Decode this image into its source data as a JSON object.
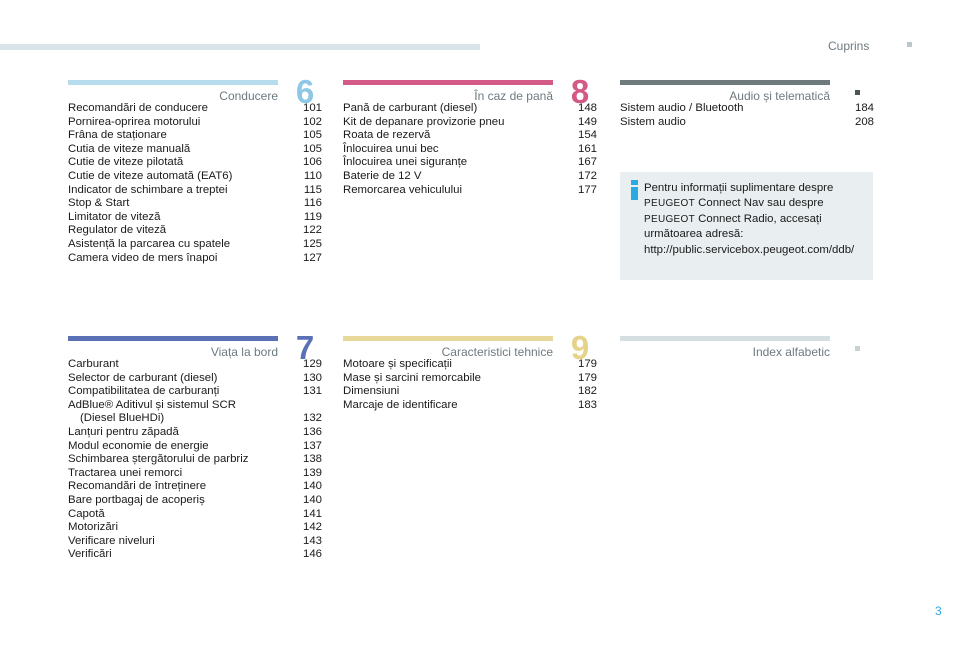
{
  "header": {
    "title": "Cuprins"
  },
  "page_number": "3",
  "sections": {
    "s6": {
      "number": "6",
      "title": "Conducere",
      "color": "#b7dcee",
      "entries": [
        {
          "label": "Recomandări de conducere",
          "page": "101"
        },
        {
          "label": "Pornirea-oprirea motorului",
          "page": "102"
        },
        {
          "label": "Frâna de staționare",
          "page": "105"
        },
        {
          "label": "Cutia de viteze manuală",
          "page": "105"
        },
        {
          "label": "Cutie de viteze pilotată",
          "page": "106"
        },
        {
          "label": "Cutie de viteze automată (EAT6)",
          "page": "110"
        },
        {
          "label": "Indicator de schimbare a treptei",
          "page": "115"
        },
        {
          "label": "Stop & Start",
          "page": "116"
        },
        {
          "label": "Limitator de viteză",
          "page": "119"
        },
        {
          "label": "Regulator de viteză",
          "page": "122"
        },
        {
          "label": "Asistență la parcarea cu spatele",
          "page": "125"
        },
        {
          "label": "Camera video de mers înapoi",
          "page": "127"
        }
      ]
    },
    "s8": {
      "number": "8",
      "title": "În caz de pană",
      "color": "#d35a86",
      "entries": [
        {
          "label": "Pană de carburant (diesel)",
          "page": "148"
        },
        {
          "label": "Kit de depanare provizorie pneu",
          "page": "149"
        },
        {
          "label": "Roata de rezervă",
          "page": "154"
        },
        {
          "label": "Înlocuirea unui bec",
          "page": "161"
        },
        {
          "label": "Înlocuirea unei siguranțe",
          "page": "167"
        },
        {
          "label": "Baterie de 12 V",
          "page": "172"
        },
        {
          "label": "Remorcarea vehiculului",
          "page": "177"
        }
      ]
    },
    "saudio": {
      "title": "Audio și telematică",
      "color": "#6e7a7c",
      "entries": [
        {
          "label": "Sistem audio / Bluetooth",
          "page": "184"
        },
        {
          "label": "Sistem audio",
          "page": "208"
        }
      ]
    },
    "s7": {
      "number": "7",
      "title": "Viața la bord",
      "color": "#5a72b5",
      "entries": [
        {
          "label": "Carburant",
          "page": "129"
        },
        {
          "label": "Selector de carburant (diesel)",
          "page": "130"
        },
        {
          "label": "Compatibilitatea de carburanți",
          "page": "131"
        },
        {
          "label": "AdBlue® Aditivul și sistemul SCR",
          "label2": "(Diesel BlueHDi)",
          "page": "132"
        },
        {
          "label": "Lanțuri pentru zăpadă",
          "page": "136"
        },
        {
          "label": "Modul economie de energie",
          "page": "137"
        },
        {
          "label": "Schimbarea ștergătorului de parbriz",
          "page": "138"
        },
        {
          "label": "Tractarea unei remorci",
          "page": "139"
        },
        {
          "label": "Recomandări de întreținere",
          "page": "140"
        },
        {
          "label": "Bare portbagaj de acoperiș",
          "page": "140"
        },
        {
          "label": "Capotă",
          "page": "141"
        },
        {
          "label": "Motorizări",
          "page": "142"
        },
        {
          "label": "Verificare niveluri",
          "page": "143"
        },
        {
          "label": "Verificări",
          "page": "146"
        }
      ]
    },
    "s9": {
      "number": "9",
      "title": "Caracteristici tehnice",
      "color": "#e8d99a",
      "entries": [
        {
          "label": "Motoare și specificații",
          "page": "179"
        },
        {
          "label": "Mase și sarcini remorcabile",
          "page": "179"
        },
        {
          "label": "Dimensiuni",
          "page": "182"
        },
        {
          "label": "Marcaje de identificare",
          "page": "183"
        }
      ]
    },
    "sindex": {
      "title": "Index alfabetic",
      "color": "#d5dee1",
      "entries": []
    }
  },
  "info": {
    "line1": "Pentru informații suplimentare despre",
    "brand1": "PEUGEOT",
    "line2": " Connect Nav sau despre",
    "brand2": "PEUGEOT",
    "line3": " Connect Radio, accesați",
    "line4": "următoarea adresă:",
    "url": "http://public.servicebox.peugeot.com/ddb/",
    "icon_color": "#29abe2"
  },
  "icons": {
    "info": "info-icon"
  }
}
